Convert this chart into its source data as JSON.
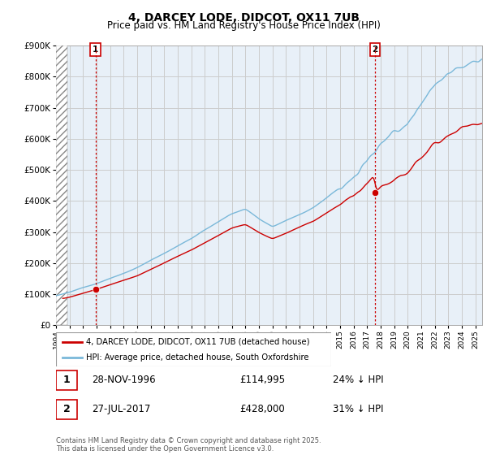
{
  "title": "4, DARCEY LODE, DIDCOT, OX11 7UB",
  "subtitle": "Price paid vs. HM Land Registry's House Price Index (HPI)",
  "ylabel_max": 900000,
  "yticks": [
    0,
    100000,
    200000,
    300000,
    400000,
    500000,
    600000,
    700000,
    800000,
    900000
  ],
  "xmin": 1994.0,
  "xmax": 2025.5,
  "hpi_color": "#7ab8d9",
  "price_color": "#cc0000",
  "grid_color": "#cccccc",
  "bg_color": "#e8f0f8",
  "legend_label_red": "4, DARCEY LODE, DIDCOT, OX11 7UB (detached house)",
  "legend_label_blue": "HPI: Average price, detached house, South Oxfordshire",
  "annotation1_date": "28-NOV-1996",
  "annotation1_price": "£114,995",
  "annotation1_pct": "24% ↓ HPI",
  "annotation2_date": "27-JUL-2017",
  "annotation2_price": "£428,000",
  "annotation2_pct": "31% ↓ HPI",
  "footer": "Contains HM Land Registry data © Crown copyright and database right 2025.\nThis data is licensed under the Open Government Licence v3.0.",
  "sale1_x": 1996.91,
  "sale1_y": 114995,
  "sale2_x": 2017.57,
  "sale2_y": 428000
}
